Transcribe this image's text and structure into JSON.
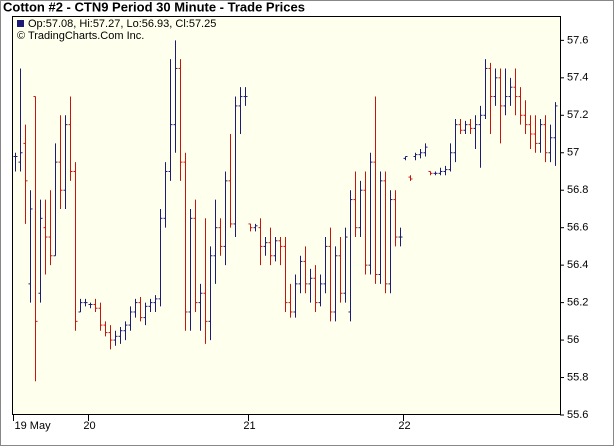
{
  "chart_data": {
    "type": "ohlc",
    "title": "Cotton #2 - CTN9 Period 30 Minute - Trade Prices",
    "legend_text": "Op:57.08, Hi:57.27, Lo:56.93, Cl:57.25",
    "source": "© TradingCharts.Com Inc.",
    "up_color": "#1c1c78",
    "down_color": "#c8140f",
    "categories": [
      "19 May",
      null,
      null,
      null,
      null,
      null,
      null,
      null,
      null,
      null,
      null,
      null,
      null,
      null,
      null,
      "20",
      null,
      null,
      null,
      null,
      null,
      null,
      null,
      null,
      null,
      null,
      null,
      null,
      null,
      null,
      null,
      null,
      null,
      null,
      null,
      null,
      null,
      null,
      null,
      null,
      null,
      null,
      null,
      null,
      null,
      null,
      null,
      "21",
      null,
      null,
      null,
      null,
      null,
      null,
      null,
      null,
      null,
      null,
      null,
      null,
      null,
      null,
      null,
      null,
      null,
      null,
      null,
      null,
      null,
      null,
      null,
      null,
      null,
      null,
      null,
      null,
      null,
      null,
      "22",
      null,
      null,
      null,
      null,
      null,
      null,
      null,
      null,
      null,
      null,
      null,
      null,
      null,
      null,
      null,
      null,
      null,
      null,
      null,
      null,
      null,
      null,
      null,
      null,
      null,
      null,
      null,
      null,
      null,
      null
    ],
    "open": [
      56.98,
      56.95,
      57.05,
      56.3,
      57.3,
      56.25,
      56.6,
      56.55,
      56.45,
      56.95,
      56.8,
      57.15,
      56.9,
      56.15,
      56.2,
      56.19,
      56.19,
      56.17,
      56.08,
      56.04,
      56.0,
      56.02,
      56.05,
      56.08,
      56.15,
      56.2,
      56.12,
      56.18,
      56.2,
      56.22,
      56.65,
      56.9,
      57.15,
      57.45,
      56.95,
      56.15,
      56.65,
      56.2,
      56.25,
      56.1,
      56.45,
      56.6,
      56.5,
      56.85,
      56.62,
      57.25,
      57.3,
      56.62,
      56.6,
      56.6,
      56.5,
      56.52,
      56.45,
      56.53,
      56.5,
      56.2,
      56.15,
      56.3,
      56.42,
      56.3,
      56.33,
      56.2,
      56.3,
      56.5,
      56.15,
      56.45,
      56.25,
      56.15,
      56.75,
      56.6,
      56.8,
      56.4,
      56.95,
      56.35,
      56.85,
      56.3,
      56.75,
      56.55,
      56.97,
      56.87,
      56.98,
      56.99,
      57.0,
      56.9,
      56.89,
      56.89,
      56.9,
      56.91,
      57.0,
      57.15,
      57.12,
      57.15,
      57.13,
      57.15,
      57.2,
      57.45,
      57.3,
      57.4,
      57.25,
      57.3,
      57.35,
      57.3,
      57.2,
      57.15,
      57.1,
      57.05,
      57.15,
      57.0,
      57.08
    ],
    "high": [
      57.0,
      57.45,
      57.15,
      56.8,
      57.3,
      56.75,
      56.75,
      56.8,
      57.05,
      57.2,
      57.2,
      57.3,
      56.95,
      56.22,
      56.22,
      56.2,
      56.22,
      56.2,
      56.1,
      56.08,
      56.05,
      56.07,
      56.1,
      56.18,
      56.22,
      56.23,
      56.2,
      56.22,
      56.24,
      56.7,
      56.95,
      57.5,
      57.6,
      57.5,
      57.0,
      56.7,
      56.75,
      56.3,
      56.65,
      56.5,
      56.75,
      56.65,
      56.9,
      57.1,
      57.3,
      57.35,
      57.35,
      56.62,
      56.62,
      56.65,
      56.55,
      56.6,
      56.55,
      56.55,
      56.55,
      56.3,
      56.35,
      56.45,
      56.5,
      56.38,
      56.4,
      56.35,
      56.55,
      56.6,
      56.5,
      56.55,
      56.6,
      56.8,
      56.9,
      56.85,
      56.9,
      57.0,
      57.3,
      56.9,
      56.9,
      56.8,
      56.8,
      56.6,
      56.98,
      56.88,
      57.0,
      57.02,
      57.05,
      56.9,
      56.9,
      56.92,
      56.93,
      57.05,
      57.18,
      57.18,
      57.17,
      57.18,
      57.2,
      57.25,
      57.5,
      57.48,
      57.45,
      57.45,
      57.45,
      57.4,
      57.45,
      57.35,
      57.28,
      57.2,
      57.2,
      57.18,
      57.2,
      57.15,
      57.27
    ],
    "low": [
      56.9,
      56.9,
      56.62,
      56.2,
      55.78,
      56.2,
      56.35,
      56.4,
      56.45,
      56.7,
      56.7,
      56.85,
      56.05,
      56.15,
      56.18,
      56.17,
      56.15,
      56.05,
      56.02,
      55.95,
      55.97,
      55.98,
      56.0,
      56.05,
      56.12,
      56.1,
      56.08,
      56.15,
      56.15,
      56.18,
      56.6,
      56.85,
      57.0,
      56.85,
      56.05,
      56.05,
      56.15,
      56.05,
      55.98,
      56.0,
      56.3,
      56.45,
      56.4,
      56.6,
      56.55,
      57.1,
      57.25,
      56.58,
      56.58,
      56.4,
      56.45,
      56.4,
      56.42,
      56.4,
      56.15,
      56.12,
      56.12,
      56.25,
      56.25,
      56.2,
      56.15,
      56.18,
      56.25,
      56.1,
      56.1,
      56.2,
      56.2,
      56.1,
      56.55,
      56.55,
      56.35,
      56.35,
      56.3,
      56.3,
      56.25,
      56.25,
      56.5,
      56.5,
      56.96,
      56.85,
      56.96,
      56.97,
      56.98,
      56.88,
      56.88,
      56.88,
      56.88,
      56.9,
      56.95,
      57.1,
      57.1,
      57.1,
      57.02,
      56.92,
      57.18,
      57.1,
      57.25,
      57.05,
      57.2,
      57.25,
      57.2,
      57.15,
      57.1,
      57.02,
      57.0,
      57.0,
      56.95,
      56.95,
      56.93
    ],
    "close": [
      56.98,
      57.0,
      56.85,
      56.7,
      56.1,
      56.65,
      56.55,
      56.45,
      56.95,
      56.8,
      57.15,
      56.9,
      56.1,
      56.2,
      56.2,
      56.19,
      56.17,
      56.08,
      56.04,
      56.0,
      56.02,
      56.05,
      56.08,
      56.15,
      56.2,
      56.12,
      56.18,
      56.2,
      56.22,
      56.65,
      56.9,
      57.15,
      57.45,
      56.95,
      56.15,
      56.65,
      56.2,
      56.25,
      56.1,
      56.45,
      56.6,
      56.5,
      56.85,
      56.62,
      57.25,
      57.3,
      57.3,
      56.6,
      56.61,
      56.5,
      56.52,
      56.45,
      56.53,
      56.5,
      56.2,
      56.15,
      56.3,
      56.42,
      56.3,
      56.33,
      56.2,
      56.3,
      56.5,
      56.15,
      56.45,
      56.25,
      56.55,
      56.75,
      56.6,
      56.8,
      56.4,
      56.95,
      56.35,
      56.85,
      56.3,
      56.75,
      56.55,
      56.55,
      56.98,
      56.86,
      56.99,
      57.0,
      57.03,
      56.89,
      56.89,
      56.9,
      56.91,
      57.0,
      57.15,
      57.12,
      57.15,
      57.13,
      57.15,
      57.2,
      57.45,
      57.3,
      57.4,
      57.25,
      57.3,
      57.35,
      57.3,
      57.2,
      57.15,
      57.1,
      57.05,
      57.15,
      57.0,
      57.08,
      57.25
    ],
    "ylim": [
      55.6,
      57.73
    ],
    "yticks": [
      55.6,
      55.8,
      56,
      56.2,
      56.4,
      56.6,
      56.8,
      57,
      57.2,
      57.4,
      57.6
    ],
    "grid": false
  }
}
